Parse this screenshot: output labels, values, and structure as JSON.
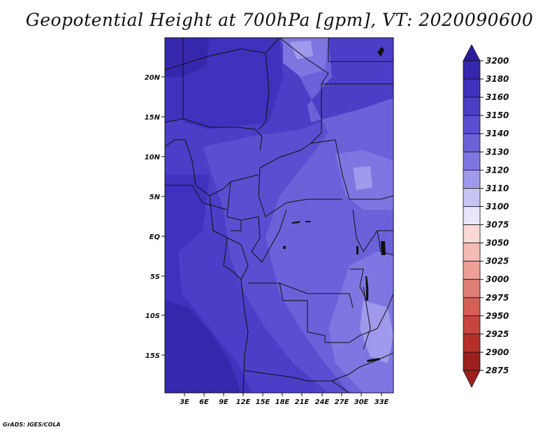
{
  "title": "Geopotential Height at 700hPa [gpm], VT: 2020090600",
  "credit": "GrADS: IGES/COLA",
  "map": {
    "lat_labels": [
      "20N",
      "15N",
      "10N",
      "5N",
      "EQ",
      "5S",
      "10S",
      "15S"
    ],
    "lon_labels": [
      "3E",
      "6E",
      "9E",
      "12E",
      "15E",
      "18E",
      "21E",
      "24E",
      "27E",
      "30E",
      "33E"
    ]
  },
  "colorbar": {
    "levels": [
      "3200",
      "3180",
      "3160",
      "3150",
      "3140",
      "3130",
      "3120",
      "3110",
      "3100",
      "3075",
      "3050",
      "3025",
      "3000",
      "2975",
      "2950",
      "2925",
      "2900",
      "2875"
    ],
    "colors": [
      "#2b1d9a",
      "#3528ad",
      "#3f32bd",
      "#4a3fc6",
      "#5a4fd0",
      "#6b62da",
      "#7e77e2",
      "#9f9aeb",
      "#c7c4f4",
      "#e8e6fb",
      "#f9d9d6",
      "#f4bcb5",
      "#ee9f96",
      "#e07f74",
      "#d55e55",
      "#c8443d",
      "#b52e28",
      "#9c1f1c"
    ]
  },
  "field_colors": {
    "h3180": "#3528ad",
    "h3160": "#3f32bd",
    "h3150": "#4a3fc6",
    "h3140": "#5a4fd0",
    "h3130": "#6b62da",
    "h3120": "#7e77e2",
    "h3110": "#9f9aeb"
  }
}
